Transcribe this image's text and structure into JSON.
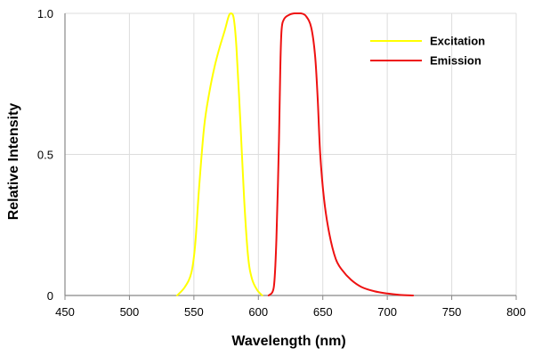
{
  "chart_data": {
    "type": "line",
    "title": "",
    "xlabel": "Wavelength (nm)",
    "ylabel": "Relative Intensity",
    "xlim": [
      450,
      800
    ],
    "ylim": [
      0,
      1.0
    ],
    "grid": true,
    "legend_position": "top-right",
    "x_ticks": [
      450,
      500,
      550,
      600,
      650,
      700,
      750,
      800
    ],
    "x_tick_labels": [
      "450",
      "500",
      "550",
      "600",
      "650",
      "700",
      "750",
      "800"
    ],
    "y_ticks": [
      0,
      0.5,
      1.0
    ],
    "y_tick_labels": [
      "0",
      "0.5",
      "1.0"
    ],
    "series": [
      {
        "name": "Excitation",
        "color": "#ffff00",
        "points": [
          [
            537,
            0.0
          ],
          [
            543,
            0.03
          ],
          [
            548,
            0.08
          ],
          [
            551,
            0.18
          ],
          [
            554,
            0.38
          ],
          [
            558,
            0.6
          ],
          [
            562,
            0.72
          ],
          [
            566,
            0.81
          ],
          [
            570,
            0.88
          ],
          [
            574,
            0.94
          ],
          [
            577,
            0.99
          ],
          [
            579,
            1.0
          ],
          [
            581,
            0.98
          ],
          [
            583,
            0.88
          ],
          [
            586,
            0.62
          ],
          [
            589,
            0.34
          ],
          [
            592,
            0.14
          ],
          [
            595,
            0.06
          ],
          [
            599,
            0.02
          ],
          [
            603,
            0.0
          ]
        ]
      },
      {
        "name": "Emission",
        "color": "#ee1111",
        "points": [
          [
            608,
            0.0
          ],
          [
            612,
            0.03
          ],
          [
            614,
            0.2
          ],
          [
            616,
            0.55
          ],
          [
            617,
            0.8
          ],
          [
            618,
            0.94
          ],
          [
            620,
            0.98
          ],
          [
            624,
            0.995
          ],
          [
            628,
            1.0
          ],
          [
            633,
            1.0
          ],
          [
            637,
            0.99
          ],
          [
            641,
            0.95
          ],
          [
            644,
            0.85
          ],
          [
            646,
            0.7
          ],
          [
            648,
            0.5
          ],
          [
            651,
            0.34
          ],
          [
            655,
            0.22
          ],
          [
            660,
            0.13
          ],
          [
            665,
            0.09
          ],
          [
            672,
            0.055
          ],
          [
            680,
            0.03
          ],
          [
            690,
            0.015
          ],
          [
            700,
            0.007
          ],
          [
            710,
            0.002
          ],
          [
            720,
            0.0
          ]
        ]
      }
    ]
  }
}
